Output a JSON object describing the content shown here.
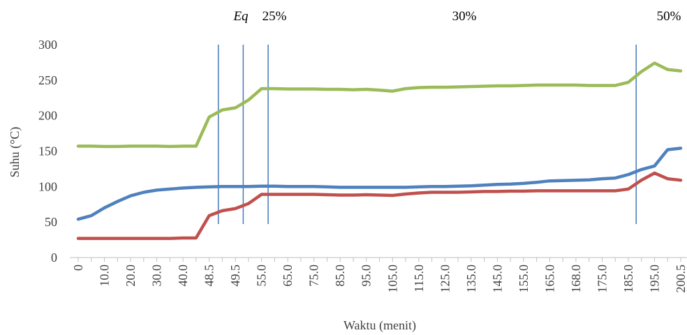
{
  "chart_data": {
    "type": "line",
    "title": "",
    "xlabel": "Waktu (menit)",
    "ylabel": "Suhu (°C)",
    "ylim": [
      0,
      300
    ],
    "yticks": [
      0,
      50,
      100,
      150,
      200,
      250,
      300
    ],
    "grid": false,
    "legend": "none",
    "categories": [
      "0",
      "5.0",
      "10.0",
      "15.0",
      "20.0",
      "25.0",
      "30.0",
      "35.0",
      "40.0",
      "45.0",
      "48.5",
      "50.0",
      "49.5",
      "52.0",
      "55.0",
      "60.0",
      "65.0",
      "70.0",
      "75.0",
      "80.0",
      "85.0",
      "90.0",
      "95.0",
      "100.0",
      "105.0",
      "110.0",
      "115.0",
      "120.0",
      "125.0",
      "130.0",
      "135.0",
      "140.0",
      "145.0",
      "150.0",
      "155.0",
      "160.0",
      "165.0",
      "166.0",
      "168.0",
      "170.0",
      "175.0",
      "180.0",
      "185.0",
      "190.0",
      "195.0",
      "200.0",
      "200.5"
    ],
    "x_tick_labels": [
      "0",
      "10.0",
      "20.0",
      "30.0",
      "40.0",
      "48.5",
      "49.5",
      "55.0",
      "65.0",
      "75.0",
      "85.0",
      "95.0",
      "105.0",
      "115.0",
      "125.0",
      "135.0",
      "145.0",
      "155.0",
      "165.0",
      "168.0",
      "175.0",
      "185.0",
      "195.0",
      "200.5"
    ],
    "series": [
      {
        "color": "#9BBB59",
        "values": [
          157,
          157,
          156.5,
          156.5,
          157,
          157,
          157,
          156.5,
          157,
          157,
          198,
          208,
          211,
          222,
          238,
          238,
          237.5,
          237.5,
          237.5,
          237,
          237,
          236.5,
          237,
          236,
          234.5,
          238,
          239.5,
          240,
          240,
          240.5,
          241,
          241.5,
          242,
          242,
          242.5,
          243,
          243,
          243,
          243,
          242.5,
          242.5,
          242.5,
          247,
          262,
          274,
          265,
          263
        ]
      },
      {
        "color": "#4F81BD",
        "values": [
          54,
          59,
          70,
          79,
          87,
          92,
          95,
          96.5,
          98,
          99,
          99.5,
          100,
          100,
          100,
          100.5,
          100.5,
          100,
          100,
          100,
          99.5,
          99,
          99,
          99,
          99,
          99,
          99,
          99.5,
          100,
          100,
          100.5,
          101,
          102,
          103,
          103.5,
          104.5,
          106,
          108,
          108.5,
          109,
          109.5,
          111,
          112,
          117,
          124,
          129,
          152,
          154
        ]
      },
      {
        "color": "#C0504D",
        "values": [
          27,
          27,
          27,
          27,
          27,
          27,
          27,
          27,
          27.5,
          27.5,
          59,
          66,
          69,
          76,
          89,
          89,
          89,
          89,
          89,
          88.5,
          88,
          88,
          88.5,
          88,
          87.5,
          89.5,
          91,
          92,
          92,
          92,
          92.5,
          93,
          93,
          93.5,
          93.5,
          94,
          94,
          94,
          94,
          94,
          94,
          94,
          96.5,
          109,
          119,
          111,
          109
        ]
      }
    ],
    "vertical_markers": [
      {
        "position_index": 10.7,
        "label": "Eq",
        "italic": true
      },
      {
        "position_index": 12.6,
        "label": "25%",
        "italic": false
      },
      {
        "position_index": 14.5,
        "label": "",
        "italic": false
      },
      {
        "position_index": 42.6,
        "label": "50%",
        "italic": false
      }
    ],
    "annotations": [
      {
        "text": "Eq",
        "italic": true
      },
      {
        "text": "25%",
        "italic": false
      },
      {
        "text": "30%",
        "italic": false
      },
      {
        "text": "50%",
        "italic": false
      }
    ],
    "marker_color": "#4F81BD"
  }
}
